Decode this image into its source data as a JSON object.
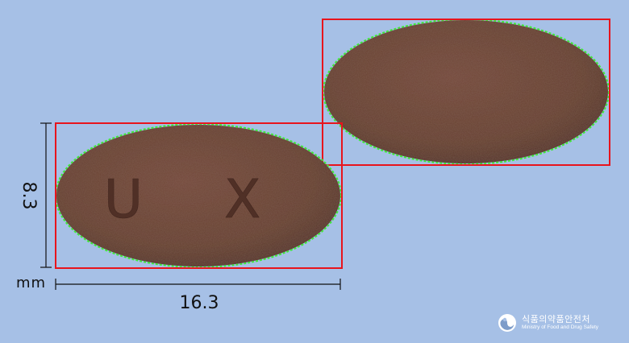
{
  "dimensions": {
    "height_value": "8.3",
    "width_value": "16.3",
    "unit": "mm"
  },
  "pill": {
    "imprint": "U X",
    "color": "#6b4438",
    "shadow_color": "#4e2e25"
  },
  "annotation": {
    "box_color": "#e8141c",
    "contour_color": "#3fe83a"
  },
  "logo": {
    "name_kr": "식품의약품안전처",
    "name_en": "Ministry of Food and Drug Safety"
  },
  "colors": {
    "background": "#a6c0e6"
  }
}
